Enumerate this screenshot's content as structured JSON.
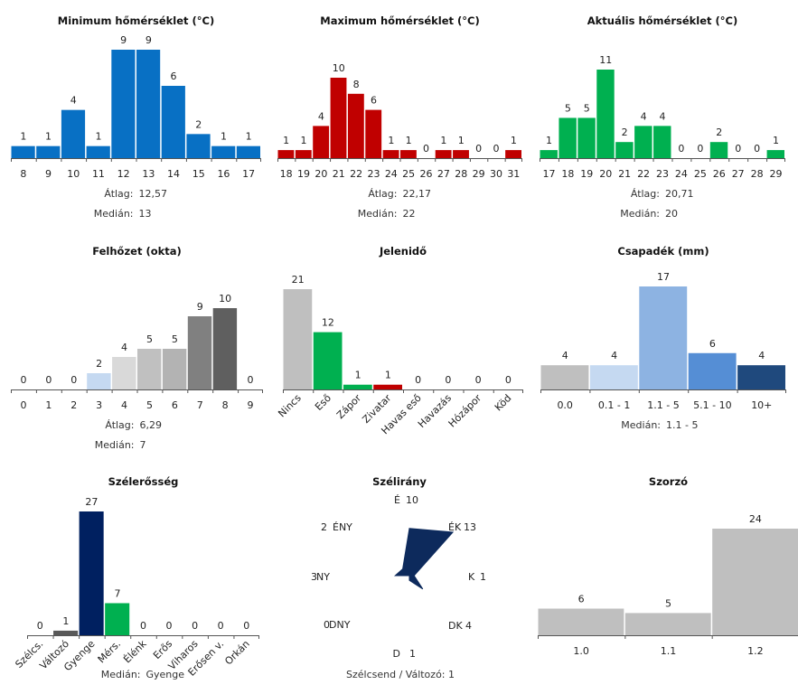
{
  "colors": {
    "blue": "#0870c4",
    "red": "#c00000",
    "green": "#00b050",
    "axis": "#555555",
    "cloud": [
      "#c5d9f1",
      "#d9d9d9",
      "#c0c0c0",
      "#b3b3b3",
      "#a6a6a6",
      "#808080",
      "#5f5f5f"
    ],
    "precip": [
      "#bfbfbf",
      "#c5d9f1",
      "#8db3e2",
      "#558ed5",
      "#1f497d"
    ],
    "wind_dir": "#0d2a5c",
    "navy": "#002060",
    "gray": "#bfbfbf",
    "dark_gray": "#595959"
  },
  "chart_data": [
    {
      "id": "min_temp",
      "type": "bar",
      "title": "Minimum hőmérséklet (°C)",
      "categories": [
        "8",
        "9",
        "10",
        "11",
        "12",
        "13",
        "14",
        "15",
        "16",
        "17"
      ],
      "values": [
        1,
        1,
        4,
        1,
        9,
        9,
        6,
        2,
        1,
        1
      ],
      "color": "blue",
      "ylim": [
        0,
        9
      ],
      "stats": [
        {
          "label": "Átlag:",
          "value": "12,57"
        },
        {
          "label": "Medián:",
          "value": "13"
        }
      ]
    },
    {
      "id": "max_temp",
      "type": "bar",
      "title": "Maximum hőmérséklet (°C)",
      "categories": [
        "18",
        "19",
        "20",
        "21",
        "22",
        "23",
        "24",
        "25",
        "26",
        "27",
        "28",
        "29",
        "30",
        "31"
      ],
      "values": [
        1,
        1,
        4,
        10,
        8,
        6,
        1,
        1,
        0,
        1,
        1,
        0,
        0,
        1
      ],
      "color": "red",
      "ylim": [
        0,
        10
      ],
      "stats": [
        {
          "label": "Átlag:",
          "value": "22,17"
        },
        {
          "label": "Medián:",
          "value": "22"
        }
      ]
    },
    {
      "id": "cur_temp",
      "type": "bar",
      "title": "Aktuális hőmérséklet (°C)",
      "categories": [
        "17",
        "18",
        "19",
        "20",
        "21",
        "22",
        "23",
        "24",
        "25",
        "26",
        "27",
        "28",
        "29"
      ],
      "values": [
        1,
        5,
        5,
        11,
        2,
        4,
        4,
        0,
        0,
        2,
        0,
        0,
        1
      ],
      "color": "green",
      "ylim": [
        0,
        11
      ],
      "stats": [
        {
          "label": "Átlag:",
          "value": "20,71"
        },
        {
          "label": "Medián:",
          "value": "20"
        }
      ]
    },
    {
      "id": "clouds",
      "type": "bar",
      "title": "Felhőzet (okta)",
      "categories": [
        "0",
        "1",
        "2",
        "3",
        "4",
        "5",
        "6",
        "7",
        "8",
        "9"
      ],
      "values": [
        0,
        0,
        0,
        2,
        4,
        5,
        5,
        9,
        10,
        0
      ],
      "colors": [
        "#c5d9f1",
        "#c5d9f1",
        "#c5d9f1",
        "#c5d9f1",
        "#d9d9d9",
        "#c0c0c0",
        "#b3b3b3",
        "#808080",
        "#5f5f5f",
        "#5f5f5f"
      ],
      "ylim": [
        0,
        10
      ],
      "stats": [
        {
          "label": "Átlag:",
          "value": "6,29"
        },
        {
          "label": "Medián:",
          "value": "7"
        }
      ]
    },
    {
      "id": "weather",
      "type": "bar",
      "title": "Jelenidő",
      "categories": [
        "Nincs",
        "Eső",
        "Zápor",
        "Zivatar",
        "Havas eső",
        "Havazás",
        "Hózápor",
        "Köd"
      ],
      "values": [
        21,
        12,
        1,
        1,
        0,
        0,
        0,
        0
      ],
      "colors": [
        "#bfbfbf",
        "#00b050",
        "#00b050",
        "#c00000",
        "#bfbfbf",
        "#bfbfbf",
        "#bfbfbf",
        "#bfbfbf"
      ],
      "ylim": [
        0,
        21
      ],
      "rotated_labels": true,
      "stats": []
    },
    {
      "id": "precip",
      "type": "bar",
      "title": "Csapadék (mm)",
      "categories": [
        "0.0",
        "0.1 - 1",
        "1.1 - 5",
        "5.1 - 10",
        "10+"
      ],
      "values": [
        4,
        4,
        17,
        6,
        4
      ],
      "colors": [
        "#bfbfbf",
        "#c5d9f1",
        "#8db3e2",
        "#558ed5",
        "#1f497d"
      ],
      "ylim": [
        0,
        17
      ],
      "stats": [
        {
          "label": "Medián:",
          "value": "1.1 - 5"
        }
      ]
    },
    {
      "id": "wind_speed",
      "type": "bar",
      "title": "Szélerősség",
      "categories": [
        "Szélcs.",
        "Változó",
        "Gyenge",
        "Mérs.",
        "Élénk",
        "Erős",
        "Viharos",
        "Erősen v.",
        "Orkán"
      ],
      "values": [
        0,
        1,
        27,
        7,
        0,
        0,
        0,
        0,
        0
      ],
      "colors": [
        "#bfbfbf",
        "#595959",
        "#002060",
        "#00b050",
        "#bfbfbf",
        "#bfbfbf",
        "#bfbfbf",
        "#bfbfbf",
        "#bfbfbf"
      ],
      "ylim": [
        0,
        27
      ],
      "rotated_labels": true,
      "stats": [
        {
          "label": "Medián:",
          "value": "Gyenge"
        }
      ]
    },
    {
      "id": "wind_dir",
      "type": "radar",
      "title": "Szélirány",
      "directions": [
        {
          "name": "É",
          "count": 10
        },
        {
          "name": "ÉK",
          "count": 13
        },
        {
          "name": "K",
          "count": 1
        },
        {
          "name": "DK",
          "count": 4
        },
        {
          "name": "D",
          "count": 1
        },
        {
          "name": "DNY",
          "count": 0
        },
        {
          "name": "NY",
          "count": 3
        },
        {
          "name": "ÉNY",
          "count": 2
        }
      ],
      "footer": "Szélcsend / Változó: 1"
    },
    {
      "id": "multiplier",
      "type": "bar",
      "title": "Szorzó",
      "categories": [
        "1.0",
        "1.1",
        "1.2"
      ],
      "values": [
        6,
        5,
        24
      ],
      "color": "gray",
      "ylim": [
        0,
        24
      ],
      "stats": []
    }
  ]
}
